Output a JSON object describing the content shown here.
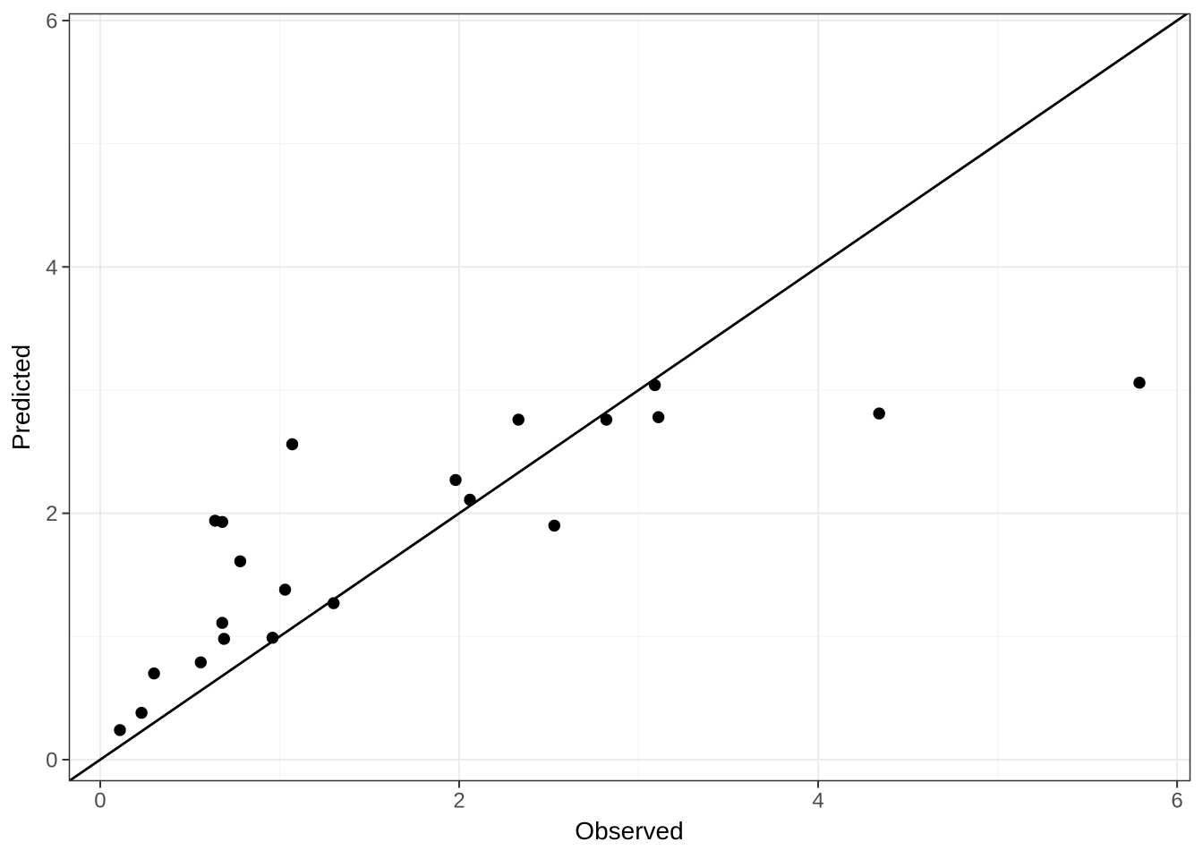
{
  "figure": {
    "background_color": "#FFFFFF",
    "panel_fill": "#FFFFFF",
    "panel_border_color": "#333333",
    "grid_major_color": "#EBEBEB",
    "grid_minor_color": "#F3F3F3",
    "tick_mark_color": "#333333",
    "tick_label_color": "#4D4D4D",
    "axis_title_color": "#000000"
  },
  "chart_data": {
    "type": "scatter",
    "title": "",
    "xlabel": "Observed",
    "ylabel": "Predicted",
    "xlim": [
      -0.172,
      6.072
    ],
    "ylim": [
      -0.171,
      6.054
    ],
    "x_ticks": [
      0,
      2,
      4,
      6
    ],
    "y_ticks": [
      0,
      2,
      4,
      6
    ],
    "x_minor_ticks": [
      1,
      3,
      5
    ],
    "y_minor_ticks": [
      1,
      3,
      5
    ],
    "grid": "on",
    "legend": "none",
    "point_color": "#000000",
    "reference_line": {
      "type": "identity",
      "slope": 1,
      "intercept": 0,
      "color": "#000000"
    },
    "points": [
      [
        0.11,
        0.24
      ],
      [
        0.23,
        0.38
      ],
      [
        0.3,
        0.7
      ],
      [
        0.56,
        0.79
      ],
      [
        0.64,
        1.94
      ],
      [
        0.68,
        1.93
      ],
      [
        0.68,
        1.11
      ],
      [
        0.69,
        0.98
      ],
      [
        0.78,
        1.61
      ],
      [
        0.96,
        0.99
      ],
      [
        1.03,
        1.38
      ],
      [
        1.07,
        2.56
      ],
      [
        1.3,
        1.27
      ],
      [
        1.98,
        2.27
      ],
      [
        2.06,
        2.11
      ],
      [
        2.33,
        2.76
      ],
      [
        2.53,
        1.9
      ],
      [
        2.82,
        2.76
      ],
      [
        3.09,
        3.04
      ],
      [
        3.11,
        2.78
      ],
      [
        4.34,
        2.81
      ],
      [
        5.79,
        3.06
      ]
    ]
  }
}
